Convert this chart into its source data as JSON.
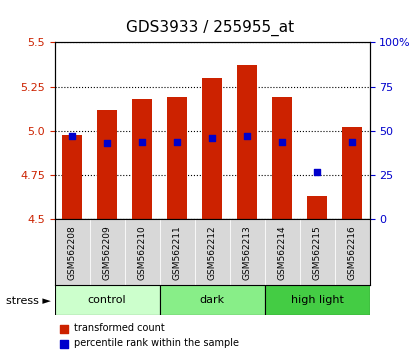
{
  "title": "GDS3933 / 255955_at",
  "samples": [
    "GSM562208",
    "GSM562209",
    "GSM562210",
    "GSM562211",
    "GSM562212",
    "GSM562213",
    "GSM562214",
    "GSM562215",
    "GSM562216"
  ],
  "bar_tops": [
    4.98,
    5.12,
    5.18,
    5.19,
    5.3,
    5.37,
    5.19,
    4.63,
    5.02
  ],
  "bar_bottom": 4.5,
  "percentile_values": [
    4.92,
    4.94,
    4.94,
    4.94,
    4.94,
    4.95,
    4.94,
    4.86,
    4.93
  ],
  "percentile_ranks": [
    47,
    43,
    44,
    44,
    46,
    47,
    44,
    27,
    44
  ],
  "ylim": [
    4.5,
    5.5
  ],
  "y2lim": [
    0,
    100
  ],
  "yticks": [
    4.5,
    4.75,
    5.0,
    5.25,
    5.5
  ],
  "y2ticks": [
    0,
    25,
    50,
    75,
    100
  ],
  "bar_color": "#cc2200",
  "dot_color": "#0000cc",
  "groups": [
    {
      "label": "control",
      "indices": [
        0,
        1,
        2
      ],
      "color": "#ccffcc"
    },
    {
      "label": "dark",
      "indices": [
        3,
        4,
        5
      ],
      "color": "#88ee88"
    },
    {
      "label": "high light",
      "indices": [
        6,
        7,
        8
      ],
      "color": "#44cc44"
    }
  ],
  "stress_label": "stress",
  "legend_red": "transformed count",
  "legend_blue": "percentile rank within the sample",
  "bar_width": 0.55,
  "bg_color": "#f0f0f0",
  "plot_bg": "#f5f5f5"
}
